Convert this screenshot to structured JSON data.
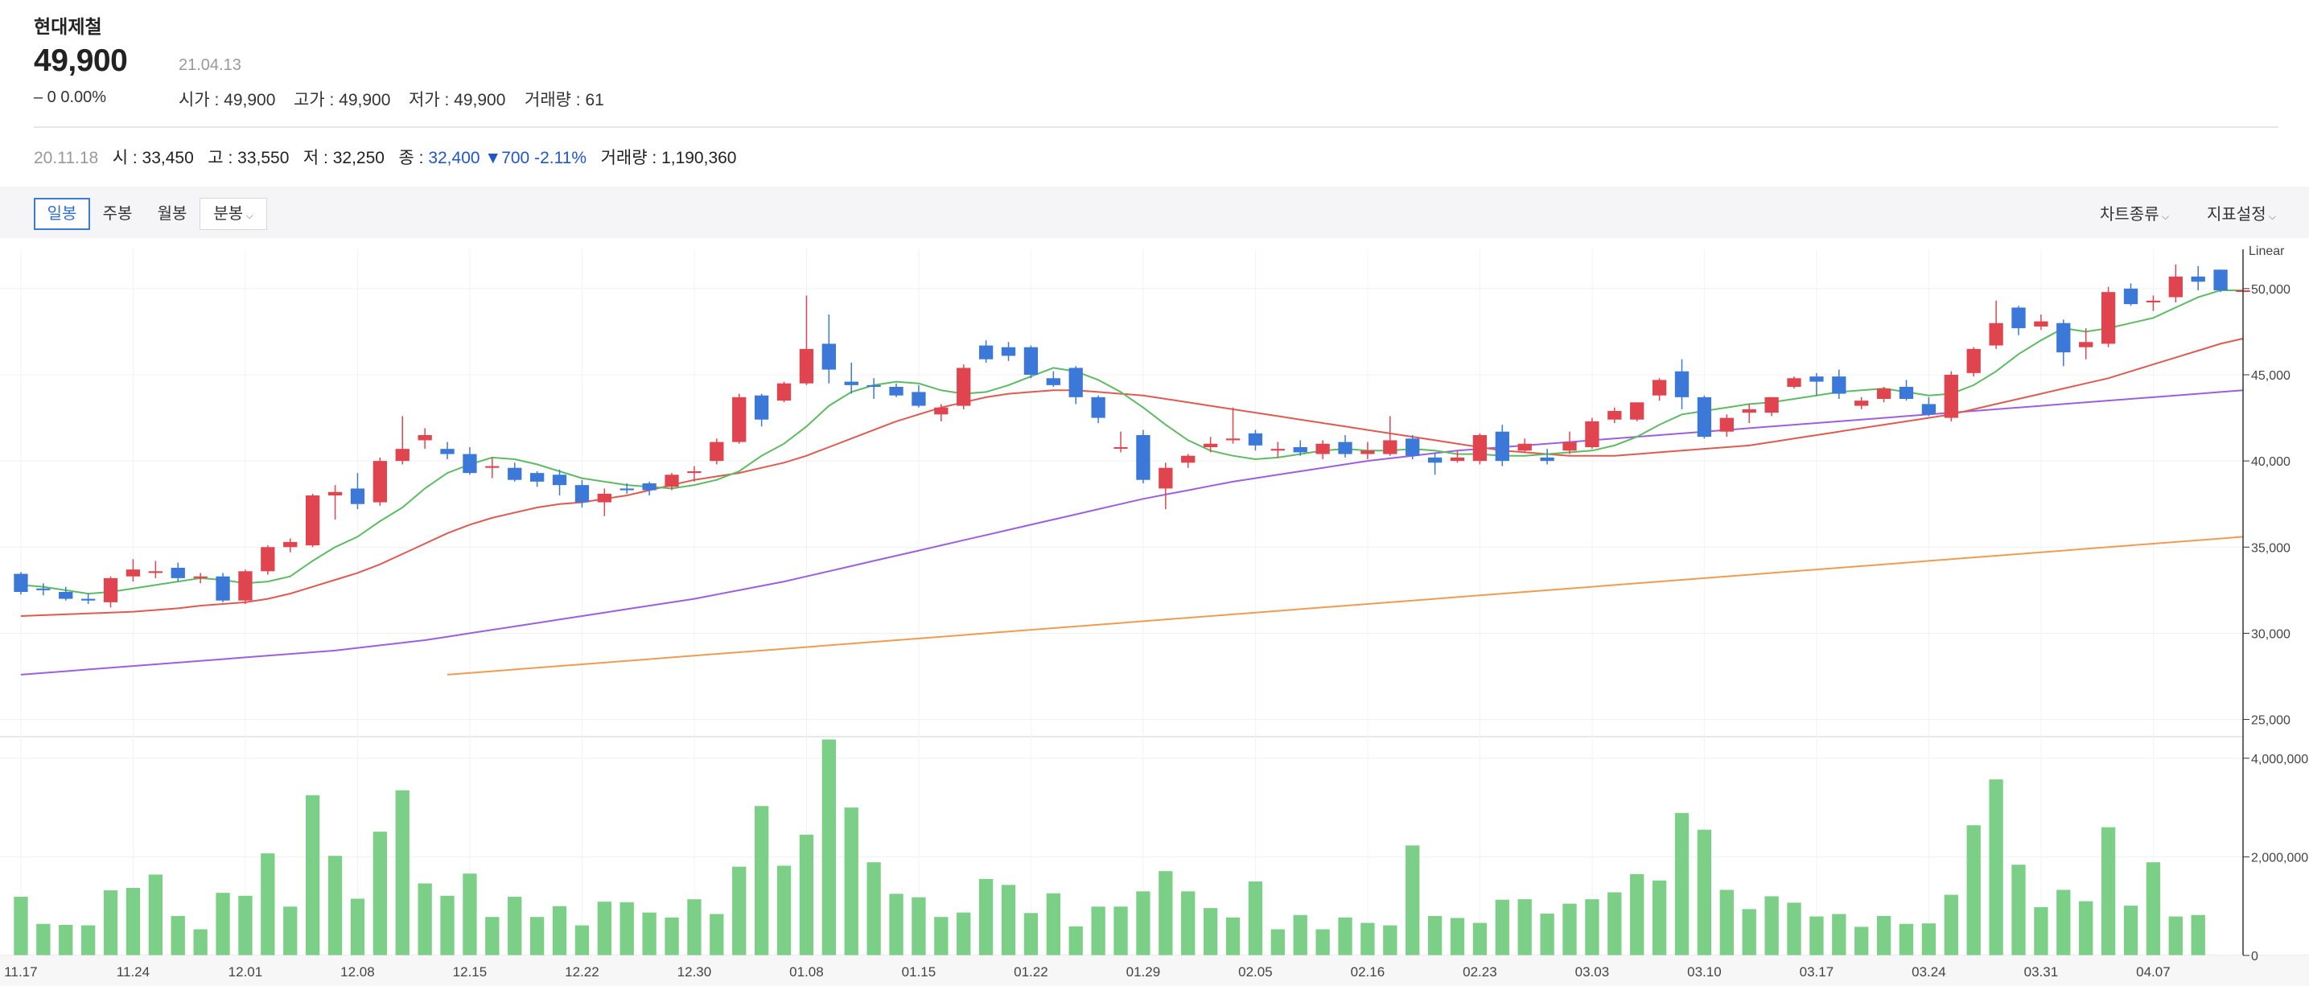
{
  "stock": {
    "name": "현대제철",
    "price": "49,900",
    "change": "‒ 0  0.00%",
    "date": "21.04.13",
    "ohlc": [
      {
        "label": "시가 :",
        "value": "49,900"
      },
      {
        "label": "고가 :",
        "value": "49,900"
      },
      {
        "label": "저가 :",
        "value": "49,900"
      },
      {
        "label": "거래량 :",
        "value": "61"
      }
    ]
  },
  "cursor_info": {
    "date": "20.11.18",
    "open_label": "시 :",
    "open": "33,450",
    "high_label": "고 :",
    "high": "33,550",
    "low_label": "저 :",
    "low": "32,250",
    "close_label": "종 :",
    "close": "32,400",
    "diff": "▼700",
    "diff_pct": "-2.11%",
    "volume_label": "거래량 :",
    "volume": "1,190,360"
  },
  "toolbar": {
    "tabs": [
      "일봉",
      "주봉",
      "월봉",
      "분봉"
    ],
    "chart_type": "차트종류",
    "indicator": "지표설정"
  },
  "colors": {
    "up": "#e0454f",
    "down": "#3b78d8",
    "ma5": "#5dbb63",
    "ma20": "#e05a52",
    "ma60": "#9c5fe0",
    "ma120": "#ee9c52",
    "volume": "#7bcf87"
  },
  "chart_data": {
    "type": "candlestick",
    "scale_label": "Linear",
    "price_ticks": [
      "50,000",
      "45,000",
      "40,000",
      "35,000",
      "30,000",
      "25,000"
    ],
    "price_tick_values": [
      50000,
      45000,
      40000,
      35000,
      30000,
      25000
    ],
    "volume_ticks": [
      "4,000,000",
      "2,000,000",
      "0"
    ],
    "volume_tick_values": [
      4000000,
      2000000,
      0
    ],
    "x_labels": [
      "11.17",
      "11.24",
      "12.01",
      "12.08",
      "12.15",
      "12.22",
      "12.30",
      "01.08",
      "01.15",
      "01.22",
      "01.29",
      "02.05",
      "02.16",
      "02.23",
      "03.03",
      "03.10",
      "03.17",
      "03.24",
      "03.31",
      "04.07"
    ],
    "x_label_index": [
      0,
      5,
      10,
      15,
      20,
      25,
      30,
      35,
      40,
      45,
      50,
      55,
      60,
      65,
      70,
      75,
      80,
      85,
      90,
      95
    ],
    "candles": [
      [
        33450,
        33550,
        32250,
        32400
      ],
      [
        32600,
        32900,
        32200,
        32500
      ],
      [
        32400,
        32700,
        31900,
        32000
      ],
      [
        32000,
        32300,
        31700,
        31900
      ],
      [
        31800,
        33300,
        31500,
        33200
      ],
      [
        33300,
        34300,
        33000,
        33700
      ],
      [
        33500,
        34200,
        33200,
        33600
      ],
      [
        33800,
        34100,
        33000,
        33200
      ],
      [
        33200,
        33500,
        32900,
        33300
      ],
      [
        33300,
        33500,
        31800,
        31900
      ],
      [
        31900,
        33700,
        31700,
        33600
      ],
      [
        33600,
        35100,
        33400,
        35000
      ],
      [
        35000,
        35500,
        34700,
        35300
      ],
      [
        35100,
        38100,
        35000,
        38000
      ],
      [
        38000,
        38600,
        36600,
        38200
      ],
      [
        38400,
        39300,
        37200,
        37500
      ],
      [
        37600,
        40200,
        37400,
        40000
      ],
      [
        40000,
        42600,
        39800,
        40700
      ],
      [
        41200,
        41900,
        40700,
        41500
      ],
      [
        40700,
        41100,
        40100,
        40400
      ],
      [
        40400,
        40800,
        39200,
        39300
      ],
      [
        39600,
        40200,
        39000,
        39700
      ],
      [
        39600,
        39900,
        38800,
        38900
      ],
      [
        39300,
        39400,
        38500,
        38800
      ],
      [
        39200,
        39500,
        38000,
        38600
      ],
      [
        38600,
        38900,
        37300,
        37600
      ],
      [
        37600,
        38400,
        36800,
        38100
      ],
      [
        38400,
        38700,
        38100,
        38300
      ],
      [
        38700,
        38800,
        38000,
        38300
      ],
      [
        38500,
        39300,
        38300,
        39200
      ],
      [
        39300,
        39700,
        38800,
        39400
      ],
      [
        40000,
        41300,
        39800,
        41100
      ],
      [
        41100,
        43900,
        41000,
        43700
      ],
      [
        43800,
        43900,
        42000,
        42400
      ],
      [
        43500,
        44600,
        43400,
        44500
      ],
      [
        44500,
        49600,
        44400,
        46500
      ],
      [
        46800,
        48500,
        44500,
        45300
      ],
      [
        44600,
        45700,
        43900,
        44400
      ],
      [
        44400,
        44800,
        43600,
        44300
      ],
      [
        44300,
        44500,
        43700,
        43800
      ],
      [
        44000,
        44400,
        43100,
        43200
      ],
      [
        42700,
        43300,
        42300,
        43100
      ],
      [
        43200,
        45600,
        43000,
        45400
      ],
      [
        46700,
        47000,
        45700,
        45900
      ],
      [
        46600,
        46900,
        45800,
        46100
      ],
      [
        46600,
        46700,
        44800,
        45000
      ],
      [
        44800,
        45200,
        44300,
        44400
      ],
      [
        45400,
        45500,
        43300,
        43700
      ],
      [
        43700,
        43800,
        42200,
        42500
      ],
      [
        40800,
        41700,
        40500,
        40800
      ],
      [
        41500,
        41800,
        38700,
        38900
      ],
      [
        38400,
        39900,
        37200,
        39600
      ],
      [
        39900,
        40400,
        39600,
        40300
      ],
      [
        40800,
        41400,
        40500,
        41000
      ],
      [
        41200,
        43100,
        41000,
        41300
      ],
      [
        41600,
        41800,
        40600,
        40900
      ],
      [
        40600,
        41100,
        40200,
        40700
      ],
      [
        40800,
        41200,
        40300,
        40500
      ],
      [
        40400,
        41200,
        40100,
        41000
      ],
      [
        41100,
        41500,
        40200,
        40400
      ],
      [
        40400,
        41100,
        40100,
        40600
      ],
      [
        40400,
        42600,
        40300,
        41200
      ],
      [
        41300,
        41500,
        40100,
        40300
      ],
      [
        40200,
        40500,
        39200,
        39900
      ],
      [
        40000,
        40600,
        39900,
        40200
      ],
      [
        40000,
        41600,
        39800,
        41500
      ],
      [
        41700,
        42100,
        39700,
        40000
      ],
      [
        40600,
        41300,
        40500,
        41000
      ],
      [
        40200,
        40700,
        39800,
        40000
      ],
      [
        40600,
        41700,
        40400,
        41100
      ],
      [
        40800,
        42500,
        40700,
        42300
      ],
      [
        42400,
        43100,
        42200,
        42900
      ],
      [
        42400,
        43400,
        42300,
        43400
      ],
      [
        43800,
        44800,
        43500,
        44700
      ],
      [
        45200,
        45900,
        43000,
        43700
      ],
      [
        43700,
        43800,
        41300,
        41400
      ],
      [
        41700,
        42700,
        41400,
        42500
      ],
      [
        42800,
        43300,
        42200,
        43000
      ],
      [
        42800,
        43700,
        42600,
        43700
      ],
      [
        44300,
        44900,
        44200,
        44800
      ],
      [
        44900,
        45100,
        43800,
        44600
      ],
      [
        44900,
        45300,
        43600,
        43900
      ],
      [
        43200,
        43700,
        43000,
        43500
      ],
      [
        43600,
        44300,
        43400,
        44200
      ],
      [
        44300,
        44700,
        43500,
        43600
      ],
      [
        43300,
        43700,
        42600,
        42700
      ],
      [
        42500,
        45200,
        42300,
        45000
      ],
      [
        45100,
        46600,
        44900,
        46500
      ],
      [
        46700,
        49300,
        46500,
        48000
      ],
      [
        48900,
        49000,
        47300,
        47700
      ],
      [
        47800,
        48500,
        47600,
        48100
      ],
      [
        48000,
        48200,
        45500,
        46300
      ],
      [
        46600,
        47700,
        45900,
        46900
      ],
      [
        46800,
        50100,
        46600,
        49800
      ],
      [
        50000,
        50300,
        49000,
        49100
      ],
      [
        49200,
        49600,
        48700,
        49300
      ],
      [
        49500,
        51400,
        49200,
        50700
      ],
      [
        50700,
        51300,
        49900,
        50400
      ],
      [
        51100,
        51100,
        49800,
        49900
      ],
      [
        49900,
        49900,
        49900,
        49900
      ]
    ],
    "volumes": [
      1190360,
      640000,
      620000,
      610000,
      1320000,
      1370000,
      1640000,
      800000,
      530000,
      1270000,
      1210000,
      2070000,
      990000,
      3250000,
      2020000,
      1150000,
      2510000,
      3350000,
      1460000,
      1210000,
      1660000,
      780000,
      1190000,
      780000,
      1000000,
      610000,
      1090000,
      1080000,
      870000,
      770000,
      1140000,
      840000,
      1800000,
      3030000,
      1820000,
      2450000,
      4380000,
      3000000,
      1890000,
      1250000,
      1180000,
      780000,
      870000,
      1550000,
      1430000,
      860000,
      1260000,
      590000,
      990000,
      990000,
      1300000,
      1710000,
      1300000,
      960000,
      770000,
      1500000,
      530000,
      820000,
      530000,
      770000,
      660000,
      610000,
      2230000,
      800000,
      760000,
      660000,
      1130000,
      1140000,
      850000,
      1050000,
      1140000,
      1280000,
      1650000,
      1520000,
      2890000,
      2550000,
      1330000,
      940000,
      1200000,
      1070000,
      790000,
      840000,
      580000,
      800000,
      640000,
      650000,
      1230000,
      2640000,
      3570000,
      1840000,
      980000,
      1330000,
      1100000,
      2600000,
      1010000,
      1890000,
      790000,
      820000,
      0
    ],
    "ma5": [
      32800,
      32700,
      32500,
      32300,
      32400,
      32600,
      32800,
      33000,
      33200,
      33100,
      32900,
      33000,
      33300,
      34200,
      35000,
      35600,
      36500,
      37300,
      38400,
      39300,
      39800,
      40200,
      40100,
      39800,
      39400,
      39000,
      38800,
      38600,
      38500,
      38400,
      38600,
      38900,
      39400,
      40300,
      41000,
      42000,
      43200,
      44000,
      44400,
      44600,
      44500,
      44100,
      43900,
      44000,
      44400,
      44900,
      45400,
      45200,
      44700,
      44000,
      43100,
      42100,
      41200,
      40600,
      40300,
      40100,
      40200,
      40400,
      40600,
      40700,
      40600,
      40600,
      40700,
      40600,
      40400,
      40400,
      40300,
      40300,
      40400,
      40500,
      40600,
      40900,
      41400,
      42100,
      42700,
      42900,
      43100,
      43300,
      43400,
      43600,
      43800,
      44000,
      44100,
      44200,
      44000,
      43800,
      43900,
      44400,
      45200,
      46200,
      47000,
      47700,
      47500,
      47700,
      48000,
      48300,
      48900,
      49500,
      49900,
      49900
    ],
    "ma20": [
      31000,
      31050,
      31100,
      31150,
      31200,
      31250,
      31350,
      31450,
      31600,
      31700,
      31800,
      32000,
      32300,
      32700,
      33100,
      33500,
      34000,
      34600,
      35200,
      35800,
      36300,
      36700,
      37000,
      37300,
      37500,
      37600,
      37800,
      38000,
      38300,
      38600,
      38900,
      39100,
      39300,
      39600,
      39900,
      40300,
      40800,
      41300,
      41800,
      42300,
      42700,
      43100,
      43400,
      43700,
      43900,
      44000,
      44100,
      44100,
      44000,
      43900,
      43800,
      43600,
      43400,
      43200,
      43000,
      42800,
      42600,
      42400,
      42200,
      42000,
      41800,
      41600,
      41400,
      41200,
      41000,
      40800,
      40600,
      40500,
      40400,
      40300,
      40300,
      40300,
      40400,
      40500,
      40600,
      40700,
      40800,
      40900,
      41100,
      41300,
      41500,
      41700,
      41900,
      42100,
      42300,
      42500,
      42700,
      43000,
      43300,
      43600,
      43900,
      44200,
      44500,
      44800,
      45200,
      45600,
      46000,
      46400,
      46800,
      47100
    ],
    "ma60": [
      27600,
      27700,
      27800,
      27900,
      28000,
      28100,
      28200,
      28300,
      28400,
      28500,
      28600,
      28700,
      28800,
      28900,
      29000,
      29150,
      29300,
      29450,
      29600,
      29800,
      30000,
      30200,
      30400,
      30600,
      30800,
      31000,
      31200,
      31400,
      31600,
      31800,
      32000,
      32250,
      32500,
      32750,
      33000,
      33300,
      33600,
      33900,
      34200,
      34500,
      34800,
      35100,
      35400,
      35700,
      36000,
      36300,
      36600,
      36900,
      37200,
      37500,
      37800,
      38050,
      38300,
      38550,
      38800,
      39000,
      39200,
      39400,
      39600,
      39800,
      40000,
      40150,
      40300,
      40450,
      40600,
      40700,
      40800,
      40900,
      41000,
      41100,
      41200,
      41300,
      41400,
      41500,
      41600,
      41700,
      41800,
      41900,
      42000,
      42100,
      42200,
      42300,
      42400,
      42500,
      42600,
      42700,
      42800,
      42900,
      43000,
      43100,
      43200,
      43300,
      43400,
      43500,
      43600,
      43700,
      43800,
      43900,
      44000,
      44100
    ],
    "ma120_start": 19,
    "ma120": [
      27600,
      27700,
      27800,
      27900,
      28000,
      28100,
      28200,
      28300,
      28400,
      28500,
      28600,
      28700,
      28800,
      28900,
      29000,
      29100,
      29200,
      29300,
      29400,
      29500,
      29600,
      29700,
      29800,
      29900,
      30000,
      30100,
      30200,
      30300,
      30400,
      30500,
      30600,
      30700,
      30800,
      30900,
      31000,
      31100,
      31200,
      31300,
      31400,
      31500,
      31600,
      31700,
      31800,
      31900,
      32000,
      32100,
      32200,
      32300,
      32400,
      32500,
      32600,
      32700,
      32800,
      32900,
      33000,
      33100,
      33200,
      33300,
      33400,
      33500,
      33600,
      33700,
      33800,
      33900,
      34000,
      34100,
      34200,
      34300,
      34400,
      34500,
      34600,
      34700,
      34800,
      34900,
      35000,
      35100,
      35200,
      35300,
      35400,
      35500,
      35600
    ]
  }
}
